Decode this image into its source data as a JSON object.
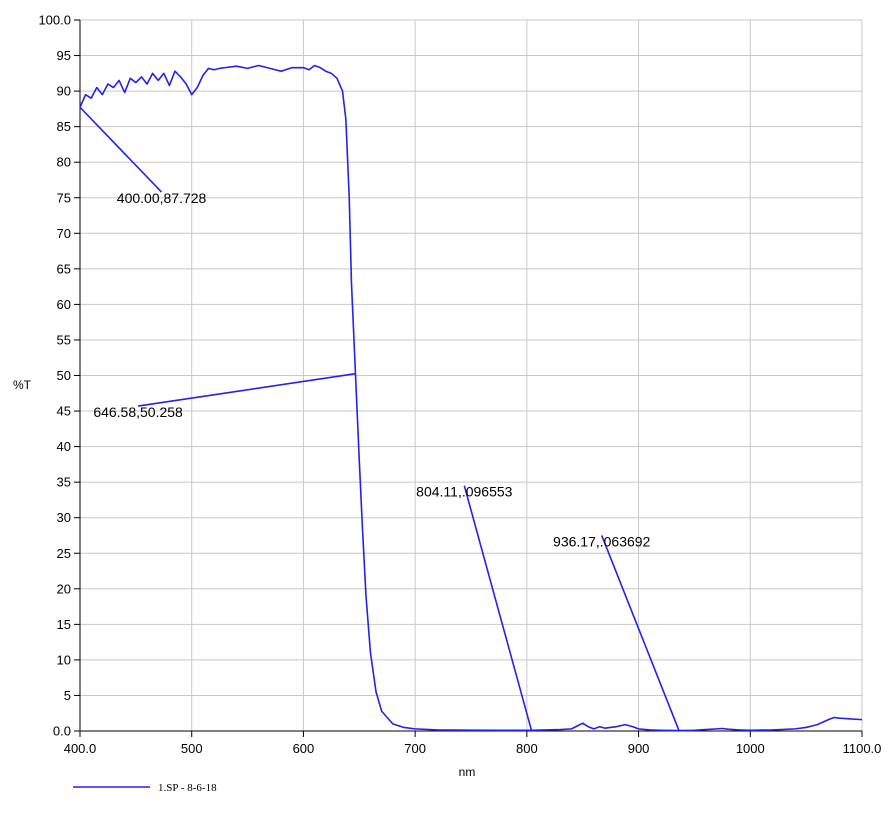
{
  "chart_data": {
    "type": "line",
    "title": "",
    "xlabel": "nm",
    "ylabel": "%T",
    "xlim": [
      400,
      1100
    ],
    "ylim": [
      0,
      100
    ],
    "grid": true,
    "legend_position": "bottom-left",
    "x_ticks": [
      400,
      500,
      600,
      700,
      800,
      900,
      1000,
      1100
    ],
    "x_tick_labels": [
      "400.0",
      "500",
      "600",
      "700",
      "800",
      "900",
      "1000",
      "1100.0"
    ],
    "y_ticks": [
      0,
      5,
      10,
      15,
      20,
      25,
      30,
      35,
      40,
      45,
      50,
      55,
      60,
      65,
      70,
      75,
      80,
      85,
      90,
      95,
      100
    ],
    "y_tick_labels": [
      "0.0",
      "5",
      "10",
      "15",
      "20",
      "25",
      "30",
      "35",
      "40",
      "45",
      "50",
      "55",
      "60",
      "65",
      "70",
      "75",
      "80",
      "85",
      "90",
      "95",
      "100.0"
    ],
    "series": [
      {
        "name": "1.SP - 8-6-18",
        "color": "#2222ee",
        "x": [
          400,
          405,
          410,
          415,
          420,
          425,
          430,
          435,
          440,
          445,
          450,
          455,
          460,
          465,
          470,
          475,
          480,
          485,
          490,
          495,
          500,
          505,
          510,
          515,
          520,
          525,
          530,
          540,
          550,
          560,
          570,
          580,
          590,
          600,
          605,
          610,
          615,
          620,
          625,
          630,
          635,
          638,
          641,
          643,
          646.58,
          650,
          653,
          656,
          660,
          665,
          670,
          680,
          690,
          700,
          720,
          750,
          780,
          804.11,
          830,
          840,
          845,
          850,
          855,
          860,
          865,
          870,
          880,
          888,
          895,
          900,
          910,
          920,
          936.17,
          950,
          960,
          970,
          975,
          980,
          990,
          1000,
          1020,
          1040,
          1050,
          1060,
          1070,
          1075,
          1080,
          1090,
          1100
        ],
        "y": [
          87.728,
          89.5,
          89,
          90.5,
          89.5,
          91,
          90.5,
          91.5,
          89.8,
          91.8,
          91.2,
          92,
          91,
          92.5,
          91.5,
          92.5,
          90.8,
          92.8,
          92,
          91,
          89.5,
          90.5,
          92.2,
          93.2,
          93,
          93.2,
          93.3,
          93.5,
          93.2,
          93.6,
          93.2,
          92.8,
          93.3,
          93.3,
          93,
          93.6,
          93.3,
          92.8,
          92.5,
          91.8,
          90,
          86,
          75,
          63,
          50.258,
          38,
          28,
          19,
          11,
          5.5,
          2.8,
          1,
          0.5,
          0.3,
          0.15,
          0.12,
          0.1,
          0.096553,
          0.2,
          0.3,
          0.7,
          1.1,
          0.6,
          0.3,
          0.6,
          0.4,
          0.6,
          0.9,
          0.6,
          0.3,
          0.15,
          0.1,
          0.063692,
          0.1,
          0.2,
          0.3,
          0.35,
          0.25,
          0.15,
          0.1,
          0.15,
          0.3,
          0.5,
          0.9,
          1.6,
          1.9,
          1.8,
          1.7,
          1.6
        ]
      }
    ],
    "annotations": [
      {
        "label": "400.00,87.728",
        "x": 400,
        "y": 87.728,
        "label_x": 473,
        "label_y": 75.8
      },
      {
        "label": "646.58,50.258",
        "x": 646.58,
        "y": 50.258,
        "label_x": 452,
        "label_y": 45.7
      },
      {
        "label": "804.11,.096553",
        "x": 804.11,
        "y": 0.096553,
        "label_x": 744,
        "label_y": 34.5
      },
      {
        "label": "936.17,.063692",
        "x": 936.17,
        "y": 0.063692,
        "label_x": 867,
        "label_y": 27.5
      }
    ]
  }
}
